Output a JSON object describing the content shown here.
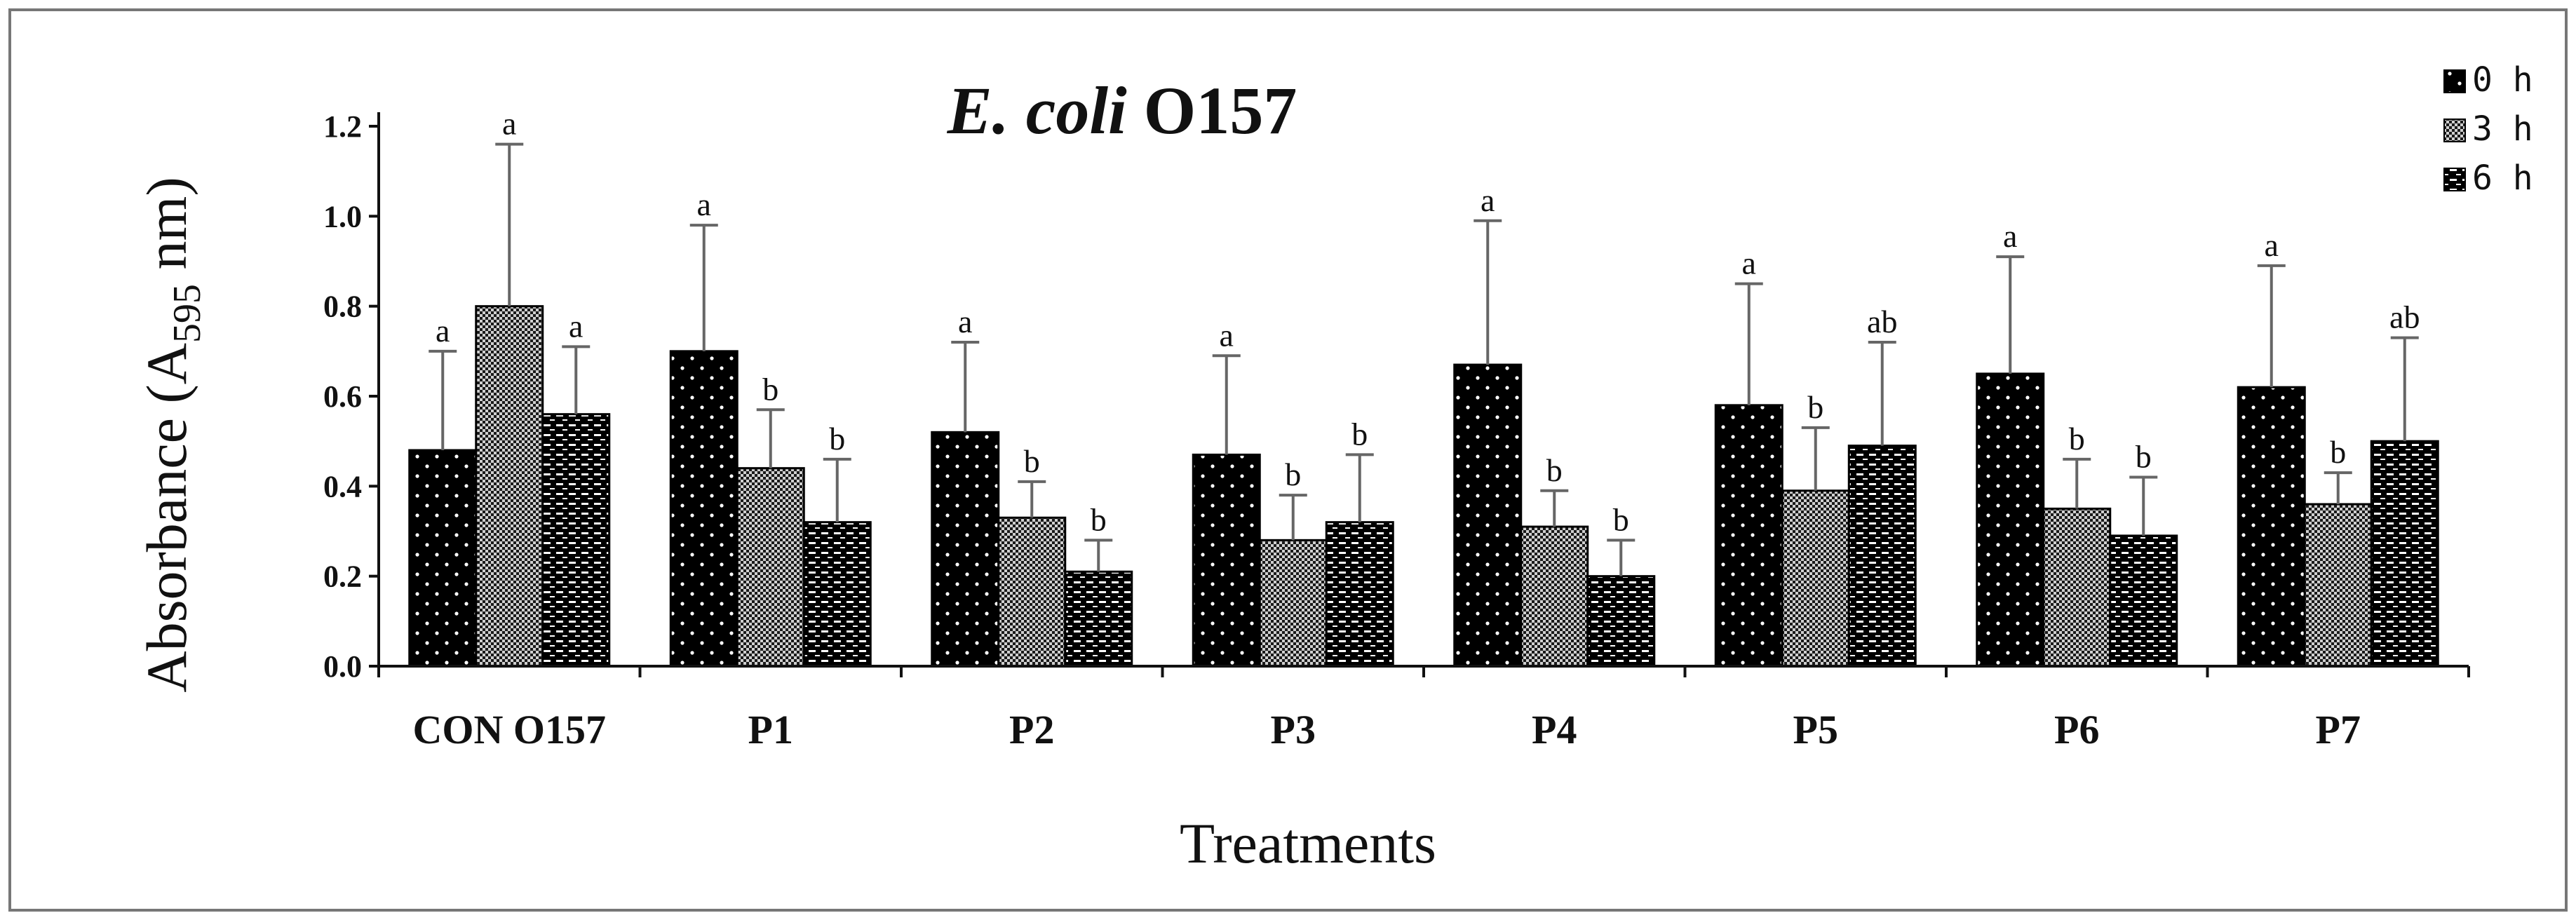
{
  "chart_data": {
    "type": "bar",
    "title": {
      "italic": "E. coli",
      "rest": "O157"
    },
    "xlabel": "Treatments",
    "ylabel": {
      "before": "Absorbance (A",
      "sub": "595",
      "after": " nm)"
    },
    "ylim": [
      0,
      1.2
    ],
    "yticks": [
      "0.0",
      "0.2",
      "0.4",
      "0.6",
      "0.8",
      "1.0",
      "1.2"
    ],
    "ytick_values": [
      0,
      0.2,
      0.4,
      0.6,
      0.8,
      1.0,
      1.2
    ],
    "categories": [
      "CON O157",
      "P1",
      "P2",
      "P3",
      "P4",
      "P5",
      "P6",
      "P7"
    ],
    "legend_position": "top-right",
    "series": [
      {
        "name": "0 h",
        "pattern": "dots",
        "values": [
          0.48,
          0.7,
          0.52,
          0.47,
          0.67,
          0.58,
          0.65,
          0.62
        ],
        "errors": [
          0.22,
          0.28,
          0.2,
          0.22,
          0.32,
          0.27,
          0.26,
          0.27
        ],
        "labels": [
          "a",
          "a",
          "a",
          "a",
          "a",
          "a",
          "a",
          "a"
        ]
      },
      {
        "name": "3 h",
        "pattern": "checker",
        "values": [
          0.8,
          0.44,
          0.33,
          0.28,
          0.31,
          0.39,
          0.35,
          0.36
        ],
        "errors": [
          0.36,
          0.13,
          0.08,
          0.1,
          0.08,
          0.14,
          0.11,
          0.07
        ],
        "labels": [
          "a",
          "b",
          "b",
          "b",
          "b",
          "b",
          "b",
          "b"
        ]
      },
      {
        "name": "6 h",
        "pattern": "stripes",
        "values": [
          0.56,
          0.32,
          0.21,
          0.32,
          0.2,
          0.49,
          0.29,
          0.5
        ],
        "errors": [
          0.15,
          0.14,
          0.07,
          0.15,
          0.08,
          0.23,
          0.13,
          0.23
        ],
        "labels": [
          "a",
          "b",
          "b",
          "b",
          "b",
          "ab",
          "b",
          "ab"
        ]
      }
    ]
  }
}
